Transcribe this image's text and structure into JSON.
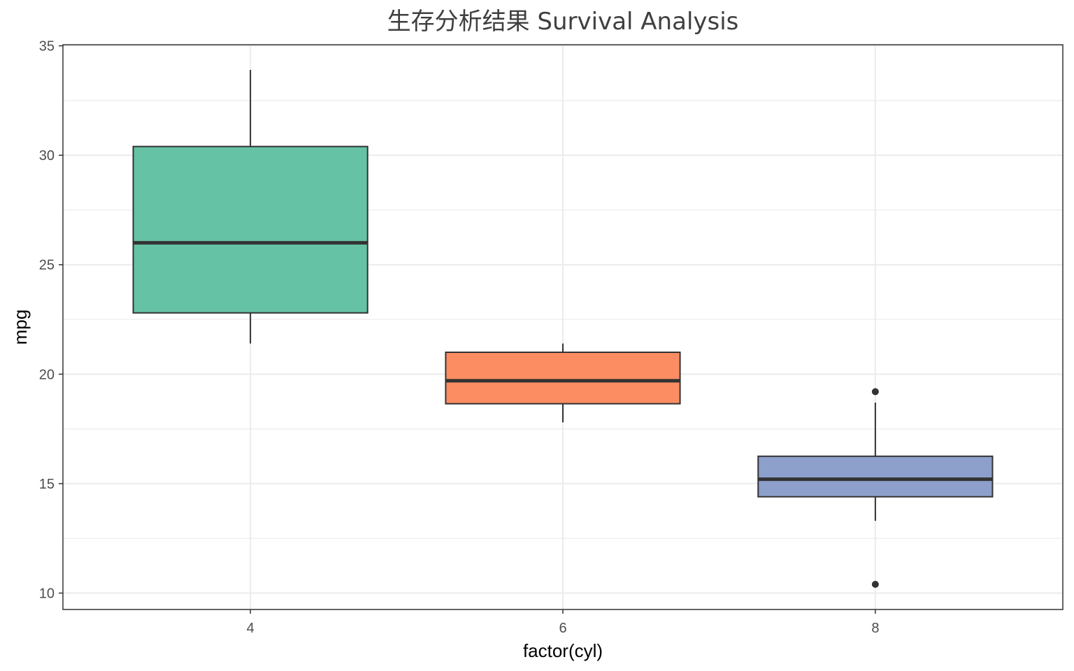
{
  "chart_data": {
    "type": "boxplot",
    "title": "生存分析结果  Survival Analysis",
    "xlabel": "factor(cyl)",
    "ylabel": "mpg",
    "ylim": [
      9.25,
      35.05
    ],
    "y_ticks": [
      10,
      15,
      20,
      25,
      30,
      35
    ],
    "grid": true,
    "legend": "none",
    "categories": [
      "4",
      "6",
      "8"
    ],
    "boxes": [
      {
        "category": "4",
        "whisker_low": 21.4,
        "q1": 22.8,
        "median": 26.0,
        "q3": 30.4,
        "whisker_high": 33.9,
        "outliers": [],
        "color": "#66c2a5"
      },
      {
        "category": "6",
        "whisker_low": 17.8,
        "q1": 18.65,
        "median": 19.7,
        "q3": 21.0,
        "whisker_high": 21.4,
        "outliers": [],
        "color": "#fc8d62"
      },
      {
        "category": "8",
        "whisker_low": 13.3,
        "q1": 14.4,
        "median": 15.2,
        "q3": 16.25,
        "whisker_high": 18.7,
        "outliers": [
          10.4,
          19.2
        ],
        "color": "#8da0cb"
      }
    ],
    "colors": {
      "grid": "#ebebeb",
      "panel_border": "#333333",
      "box_outline": "#333333",
      "median": "#333333"
    }
  }
}
